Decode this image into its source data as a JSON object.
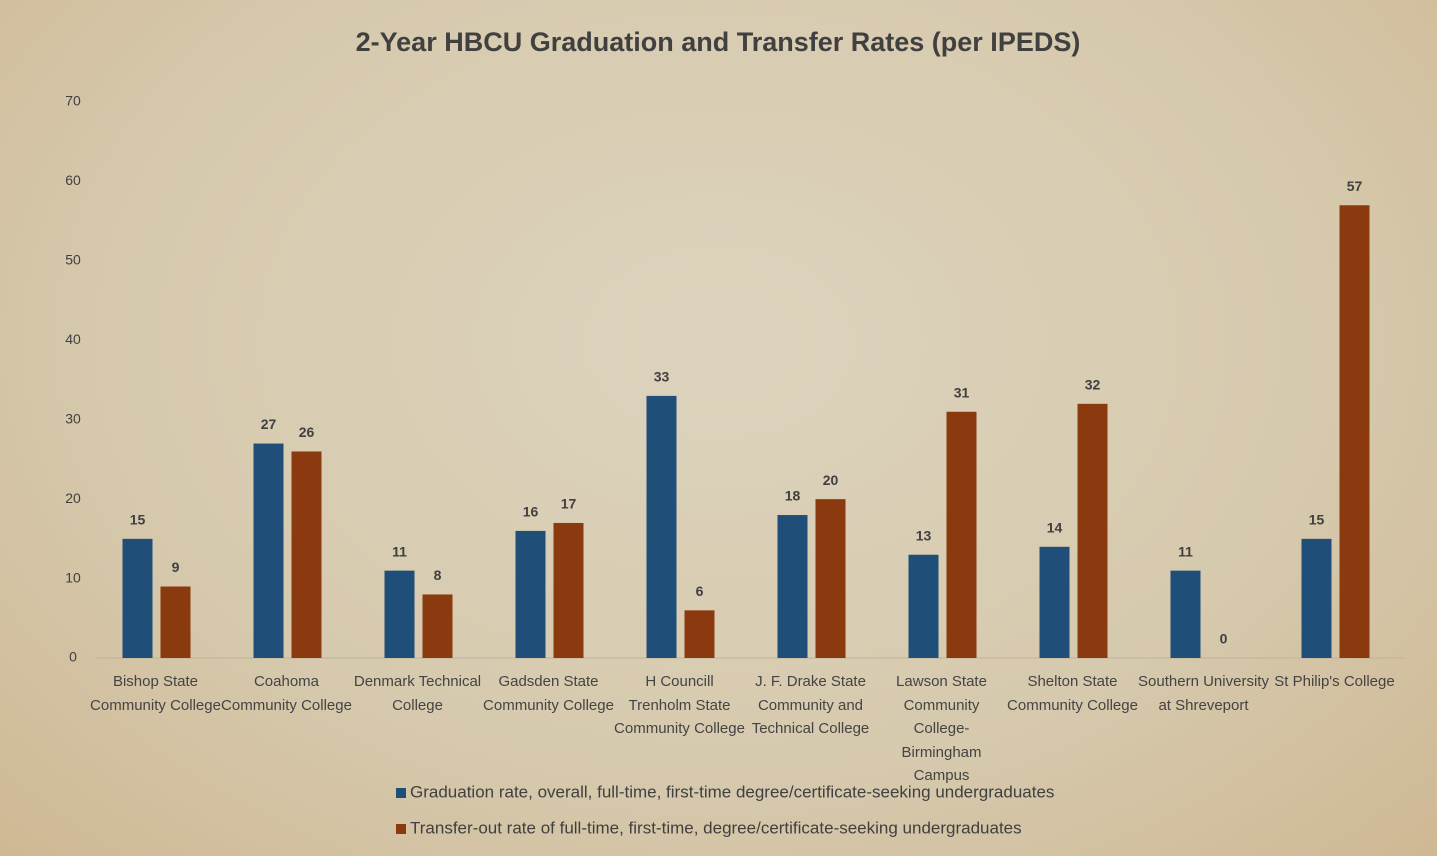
{
  "chart_data": {
    "type": "bar",
    "title": "2-Year HBCU Graduation and Transfer Rates (per IPEDS)",
    "categories": [
      "Bishop State Community College",
      "Coahoma Community College",
      "Denmark Technical College",
      "Gadsden State Community College",
      "H Councill Trenholm State Community College",
      "J. F. Drake State Community and Technical College",
      "Lawson State Community College- Birmingham Campus",
      "Shelton State Community College",
      "Southern University at Shreveport",
      "St Philip's College"
    ],
    "series": [
      {
        "name": "Graduation rate, overall, full-time, first-time degree/certificate-seeking undergraduates",
        "color": "#1f4e79",
        "values": [
          15,
          27,
          11,
          16,
          33,
          18,
          13,
          14,
          11,
          15
        ]
      },
      {
        "name": "Transfer-out rate of full-time, first-time, degree/certificate-seeking undergraduates",
        "color": "#8b3a0f",
        "values": [
          9,
          26,
          8,
          17,
          6,
          20,
          31,
          32,
          0,
          57
        ]
      }
    ],
    "ylim": [
      0,
      70
    ],
    "yticks": [
      0,
      10,
      20,
      30,
      40,
      50,
      60,
      70
    ],
    "grid": false,
    "legend": "bottom"
  }
}
